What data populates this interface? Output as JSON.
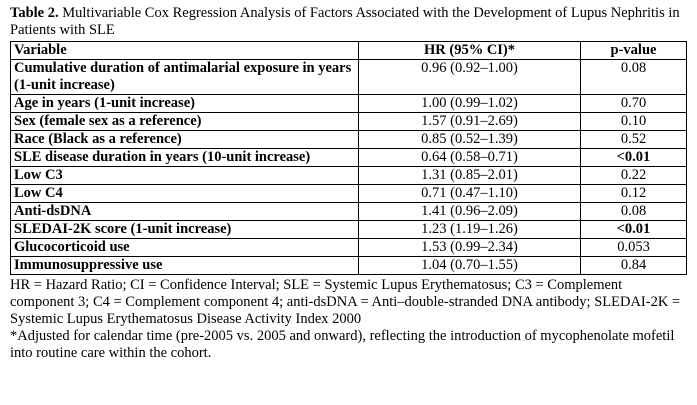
{
  "caption": {
    "label": "Table 2.",
    "title": "Multivariable Cox Regression Analysis of Factors Associated with the Development of Lupus Nephritis in Patients with SLE"
  },
  "table": {
    "header": [
      "Variable",
      "HR (95% CI)*",
      "p-value"
    ],
    "rows": [
      [
        "Cumulative duration of antimalarial exposure in years (1-unit increase)",
        "0.96 (0.92–1.00)",
        "0.08"
      ],
      [
        "Age in years (1-unit increase)",
        "1.00 (0.99–1.02)",
        "0.70"
      ],
      [
        "Sex (female sex as a reference)",
        "1.57 (0.91–2.69)",
        "0.10"
      ],
      [
        "Race (Black as a reference)",
        "0.85 (0.52–1.39)",
        "0.52"
      ],
      [
        "SLE disease duration in years (10-unit increase)",
        "0.64 (0.58–0.71)",
        "<0.01"
      ],
      [
        "Low C3",
        "1.31 (0.85–2.01)",
        "0.22"
      ],
      [
        "Low C4",
        "0.71 (0.47–1.10)",
        "0.12"
      ],
      [
        "Anti-dsDNA",
        "1.41 (0.96–2.09)",
        "0.08"
      ],
      [
        "SLEDAI-2K score (1-unit increase)",
        "1.23 (1.19–1.26)",
        "<0.01"
      ],
      [
        "Glucocorticoid use",
        "1.53 (0.99–2.34)",
        "0.053"
      ],
      [
        "Immunosuppressive use",
        "1.04 (0.70–1.55)",
        "0.84"
      ]
    ]
  },
  "footnotes": [
    "HR = Hazard Ratio; CI = Confidence Interval; SLE = Systemic Lupus Erythematosus; C3 = Complement component 3; C4 = Complement component 4; anti-dsDNA = Anti–double-stranded DNA antibody; SLEDAI-2K = Systemic Lupus Erythematosus Disease Activity Index 2000",
    "*Adjusted for calendar time (pre-2005 vs. 2005 and onward), reflecting the introduction of mycophenolate mofetil into routine care within the cohort."
  ]
}
